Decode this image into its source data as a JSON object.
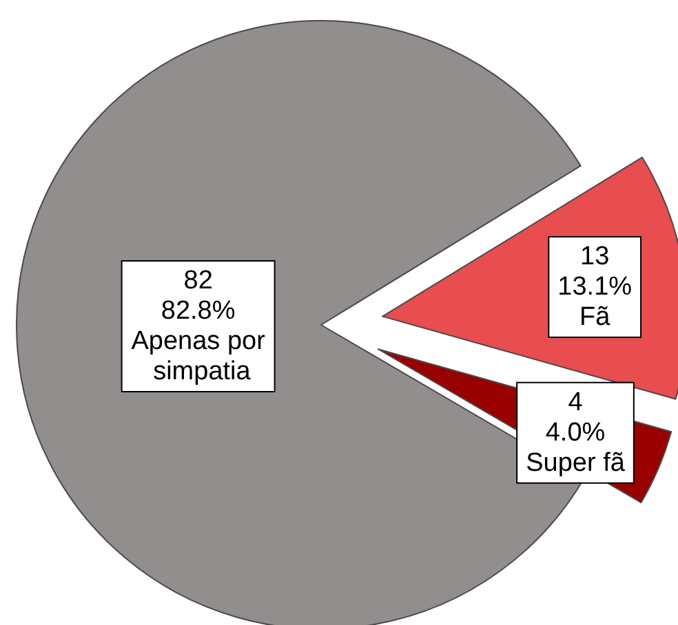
{
  "chart_data": {
    "type": "pie",
    "categories": [
      "Apenas por simpatia",
      "Fã",
      "Super fã"
    ],
    "values": [
      82,
      13,
      4
    ],
    "colors": [
      "#928e8d",
      "#e84d4f",
      "#990000"
    ],
    "value_labels": [
      "82\n82.8%",
      "13\n13.1%",
      "4\n4.0%"
    ]
  }
}
